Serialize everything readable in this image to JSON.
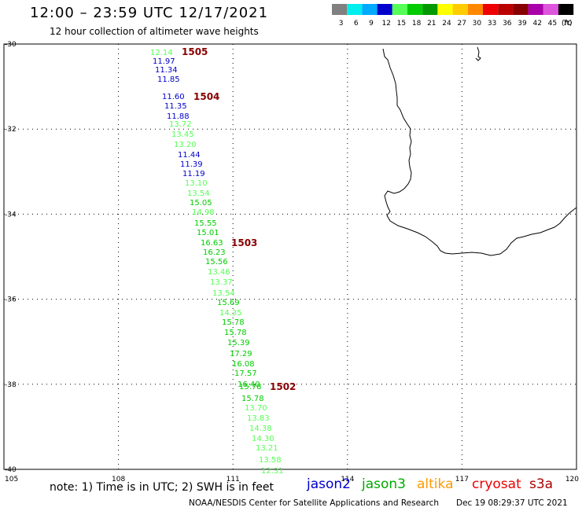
{
  "header": {
    "title": "12:00 – 23:59 UTC 12/17/2021",
    "subtitle": "12 hour collection of altimeter wave heights"
  },
  "legend": {
    "unit": "(ft)",
    "bins": [
      {
        "label": "3",
        "color": "#808080"
      },
      {
        "label": "6",
        "color": "#00eeee"
      },
      {
        "label": "9",
        "color": "#00aaff"
      },
      {
        "label": "12",
        "color": "#0000cc"
      },
      {
        "label": "15",
        "color": "#55ff55"
      },
      {
        "label": "18",
        "color": "#00cc00"
      },
      {
        "label": "21",
        "color": "#009900"
      },
      {
        "label": "24",
        "color": "#ffff00"
      },
      {
        "label": "27",
        "color": "#ffcc00"
      },
      {
        "label": "30",
        "color": "#ff8800"
      },
      {
        "label": "33",
        "color": "#ee0000"
      },
      {
        "label": "36",
        "color": "#bb0000"
      },
      {
        "label": "39",
        "color": "#880000"
      },
      {
        "label": "42",
        "color": "#aa00aa"
      },
      {
        "label": "45",
        "color": "#dd55dd"
      },
      {
        "label": "70",
        "color": "#000000"
      }
    ]
  },
  "map": {
    "lat_labels": [
      "-30",
      "-32",
      "-34",
      "-36",
      "-38",
      "-40"
    ],
    "lon_labels": [
      "105",
      "108",
      "111",
      "114",
      "117",
      "120"
    ],
    "coast_color": "#000000"
  },
  "chart_data": {
    "type": "scatter",
    "x_range": [
      105,
      120
    ],
    "y_range": [
      -30,
      -40
    ],
    "track_markers": [
      "1505",
      "1504",
      "1503",
      "1502"
    ],
    "points": [
      {
        "v": "12.14",
        "c": "#55ff55"
      },
      {
        "v": "11.97",
        "c": "#0000cc"
      },
      {
        "v": "11.34",
        "c": "#0000cc"
      },
      {
        "v": "11.85",
        "c": "#0000cc"
      },
      {
        "v": "11.60",
        "c": "#0000cc"
      },
      {
        "v": "11.35",
        "c": "#0000cc"
      },
      {
        "v": "11.88",
        "c": "#0000cc"
      },
      {
        "v": "13.72",
        "c": "#55ff55"
      },
      {
        "v": "13.45",
        "c": "#55ff55"
      },
      {
        "v": "13.20",
        "c": "#55ff55"
      },
      {
        "v": "11.44",
        "c": "#0000cc"
      },
      {
        "v": "11.39",
        "c": "#0000cc"
      },
      {
        "v": "11.19",
        "c": "#0000cc"
      },
      {
        "v": "13.10",
        "c": "#55ff55"
      },
      {
        "v": "13.54",
        "c": "#55ff55"
      },
      {
        "v": "15.05",
        "c": "#00cc00"
      },
      {
        "v": "14.98",
        "c": "#55ff55"
      },
      {
        "v": "15.55",
        "c": "#00cc00"
      },
      {
        "v": "15.01",
        "c": "#00cc00"
      },
      {
        "v": "16.63",
        "c": "#00cc00"
      },
      {
        "v": "16.23",
        "c": "#00cc00"
      },
      {
        "v": "15.56",
        "c": "#00cc00"
      },
      {
        "v": "13.46",
        "c": "#55ff55"
      },
      {
        "v": "13.37",
        "c": "#55ff55"
      },
      {
        "v": "13.54",
        "c": "#55ff55"
      },
      {
        "v": "15.69",
        "c": "#00cc00"
      },
      {
        "v": "14.35",
        "c": "#55ff55"
      },
      {
        "v": "15.78",
        "c": "#00cc00"
      },
      {
        "v": "15.78",
        "c": "#00cc00"
      },
      {
        "v": "15.39",
        "c": "#00cc00"
      },
      {
        "v": "17.29",
        "c": "#00cc00"
      },
      {
        "v": "16.08",
        "c": "#00cc00"
      },
      {
        "v": "17.57",
        "c": "#00cc00"
      },
      {
        "v": "16.40",
        "c": "#00cc00"
      },
      {
        "v": "15.78",
        "c": "#00cc00"
      },
      {
        "v": "15.78",
        "c": "#00cc00"
      },
      {
        "v": "13.70",
        "c": "#55ff55"
      },
      {
        "v": "13.83",
        "c": "#55ff55"
      },
      {
        "v": "14.38",
        "c": "#55ff55"
      },
      {
        "v": "14.30",
        "c": "#55ff55"
      },
      {
        "v": "13.21",
        "c": "#55ff55"
      },
      {
        "v": "13.58",
        "c": "#55ff55"
      },
      {
        "v": "12.31",
        "c": "#55ff55"
      }
    ]
  },
  "footer": {
    "note": "note:  1) Time is in UTC; 2) SWH is in feet",
    "satellites": [
      {
        "name": "jason2",
        "color": "#0000cc"
      },
      {
        "name": "jason3",
        "color": "#00aa00"
      },
      {
        "name": "altika",
        "color": "#ff9900"
      },
      {
        "name": "cryosat",
        "color": "#ee0000"
      },
      {
        "name": "s3a",
        "color": "#aa0000"
      }
    ],
    "credit": "NOAA/NESDIS Center for Satellite Applications and Research",
    "timestamp": "Dec 19 08:29:37 UTC 2021"
  }
}
